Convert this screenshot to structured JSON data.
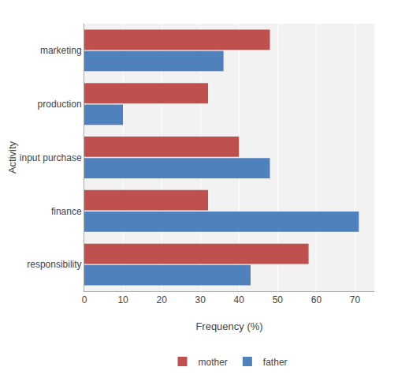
{
  "chart_data": {
    "type": "bar",
    "orientation": "horizontal",
    "categories": [
      "responsibility",
      "finance",
      "input purchase",
      "production",
      "marketing"
    ],
    "series": [
      {
        "name": "mother",
        "color": "#C0504D",
        "values": [
          58,
          32,
          40,
          32,
          48
        ]
      },
      {
        "name": "father",
        "color": "#4F81BD",
        "values": [
          43,
          71,
          48,
          10,
          36
        ]
      }
    ],
    "xlabel": "Frequency (%)",
    "ylabel": "Activity",
    "xlim": [
      0,
      75
    ],
    "xticks": [
      0,
      10,
      20,
      30,
      40,
      50,
      60,
      70
    ],
    "grid": true,
    "legend": "bottom"
  }
}
